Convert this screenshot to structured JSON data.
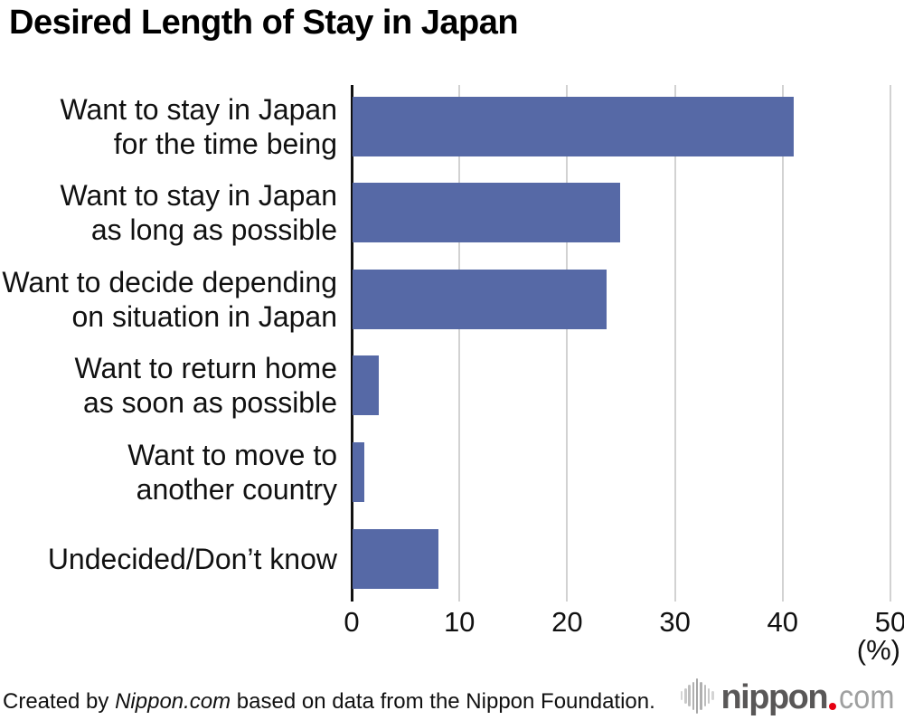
{
  "title": "Desired Length of Stay in Japan",
  "chart_data": {
    "type": "bar",
    "orientation": "horizontal",
    "categories": [
      "Want to stay in Japan for the time being",
      "Want to stay in Japan as long as possible",
      "Want to decide depending on situation in Japan",
      "Want to return home as soon as possible",
      "Want to move to another country",
      "Undecided/Don’t know"
    ],
    "category_lines": [
      [
        "Want to stay in Japan",
        "for the time being"
      ],
      [
        "Want to stay in Japan",
        "as long as possible"
      ],
      [
        "Want to decide depending",
        "on situation in Japan"
      ],
      [
        "Want to return home",
        "as soon as possible"
      ],
      [
        "Want to move to",
        "another country"
      ],
      [
        "Undecided/Don’t know"
      ]
    ],
    "values": [
      40.9,
      24.8,
      23.6,
      2.4,
      1.1,
      8.0
    ],
    "x_ticks": [
      0,
      10,
      20,
      30,
      40,
      50
    ],
    "xlim": [
      0,
      50
    ],
    "unit_label": "(%)",
    "bar_color": "#5669a6",
    "gridline_color": "#d2d2d2",
    "axis_color": "#111111",
    "grid": true,
    "legend": "none"
  },
  "footer": {
    "credit_prefix": "Created by ",
    "credit_source_italic": "Nippon.com",
    "credit_suffix": " based on data from the Nippon Foundation.",
    "logo": {
      "brand": "nippon.com",
      "text_bold": "nippon",
      "text_light": "com",
      "dot_color": "#e60012",
      "bold_color": "#595757",
      "light_color": "#9fa0a0",
      "icon": "soundwave-bars-icon"
    }
  }
}
